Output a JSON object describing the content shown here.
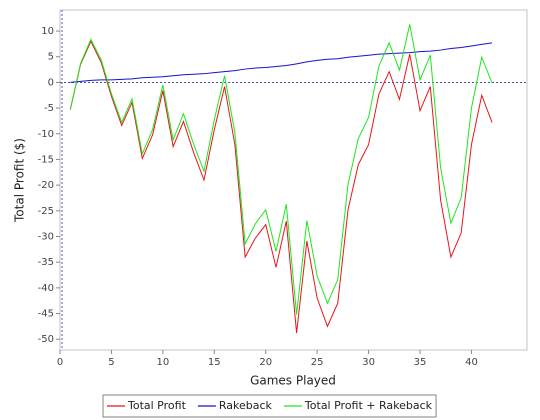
{
  "chart_data": {
    "type": "line",
    "x_label": "Games Played",
    "y_label": "Total Profit ($)",
    "x": [
      1,
      2,
      3,
      4,
      5,
      6,
      7,
      8,
      9,
      10,
      11,
      12,
      13,
      14,
      15,
      16,
      17,
      18,
      19,
      20,
      21,
      22,
      23,
      24,
      25,
      26,
      27,
      28,
      29,
      30,
      31,
      32,
      33,
      34,
      35,
      36,
      37,
      38,
      39,
      40,
      41,
      42
    ],
    "series": [
      {
        "name": "Total Profit",
        "color": "#e8141a",
        "values": [
          -5.3,
          3.5,
          8,
          3.9,
          -2.7,
          -8.4,
          -3.9,
          -14.8,
          -10.2,
          -1.6,
          -12.5,
          -7.6,
          -13.7,
          -19,
          -9.2,
          -0.8,
          -12.1,
          -34,
          -30.3,
          -27.7,
          -36,
          -27,
          -48.8,
          -30.9,
          -42,
          -47.5,
          -43,
          -24.8,
          -16,
          -12.1,
          -2.3,
          2.1,
          -3.3,
          5.5,
          -5.5,
          -0.8,
          -22.9,
          -34,
          -29.3,
          -12.1,
          -2.5,
          -7.8
        ]
      },
      {
        "name": "Rakeback",
        "color": "#1414c8",
        "values": [
          0,
          0.2,
          0.4,
          0.5,
          0.5,
          0.6,
          0.7,
          0.9,
          1.0,
          1.1,
          1.3,
          1.5,
          1.6,
          1.7,
          1.9,
          2.1,
          2.3,
          2.6,
          2.8,
          2.9,
          3.1,
          3.3,
          3.6,
          4.0,
          4.3,
          4.5,
          4.6,
          4.9,
          5.1,
          5.3,
          5.5,
          5.6,
          5.7,
          5.8,
          6.0,
          6.1,
          6.3,
          6.6,
          6.8,
          7.1,
          7.4,
          7.7
        ]
      },
      {
        "name": "Total Profit + Rakeback",
        "color": "#1ee61e",
        "values": [
          -5.3,
          3.7,
          8.4,
          4.4,
          -2.2,
          -7.8,
          -3.2,
          -13.9,
          -9.2,
          -0.5,
          -11.2,
          -6.1,
          -12.1,
          -17.3,
          -7.3,
          1.3,
          -9.8,
          -31.4,
          -27.5,
          -24.8,
          -32.9,
          -23.7,
          -45.2,
          -26.9,
          -37.7,
          -43.0,
          -38.4,
          -19.9,
          -10.9,
          -6.8,
          3.2,
          7.7,
          2.4,
          11.3,
          0.5,
          5.3,
          -16.6,
          -27.4,
          -22.5,
          -5.0,
          4.9,
          -0.1
        ]
      }
    ],
    "xlim": [
      0,
      45.4
    ],
    "xticks": [
      0,
      5,
      10,
      15,
      20,
      25,
      30,
      35,
      40
    ],
    "ylim": [
      -52.1,
      14.1
    ],
    "yticks": [
      -50,
      -45,
      -40,
      -35,
      -30,
      -25,
      -20,
      -15,
      -10,
      -5,
      0,
      5,
      10
    ],
    "legend": "bottom"
  }
}
